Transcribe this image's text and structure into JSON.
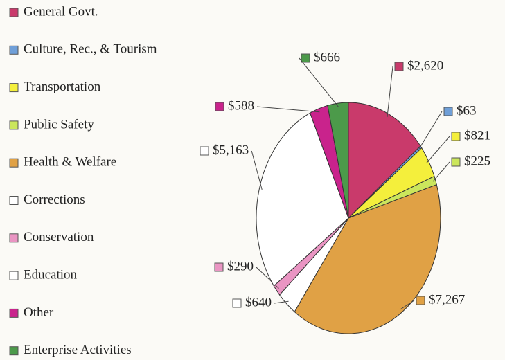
{
  "chart_data": {
    "type": "pie",
    "categories": [
      "General Govt.",
      "Culture, Rec., & Tourism",
      "Transportation",
      "Public Safety",
      "Health & Welfare",
      "Corrections",
      "Conservation",
      "Education",
      "Other",
      "Enterprise Activities"
    ],
    "values": [
      2620,
      63,
      821,
      225,
      7267,
      640,
      290,
      5163,
      588,
      666
    ],
    "value_labels": [
      "$2,620",
      "$63",
      "$821",
      "$225",
      "$7,267",
      "$640",
      "$290",
      "$5,163",
      "$588",
      "$666"
    ],
    "colors": [
      "#c93a6b",
      "#6f9fd8",
      "#f4ef3c",
      "#cbe65c",
      "#e0a145",
      "#ffffff",
      "#ea95c3",
      "#ffffff",
      "#c9238c",
      "#4c9a4a"
    ]
  }
}
